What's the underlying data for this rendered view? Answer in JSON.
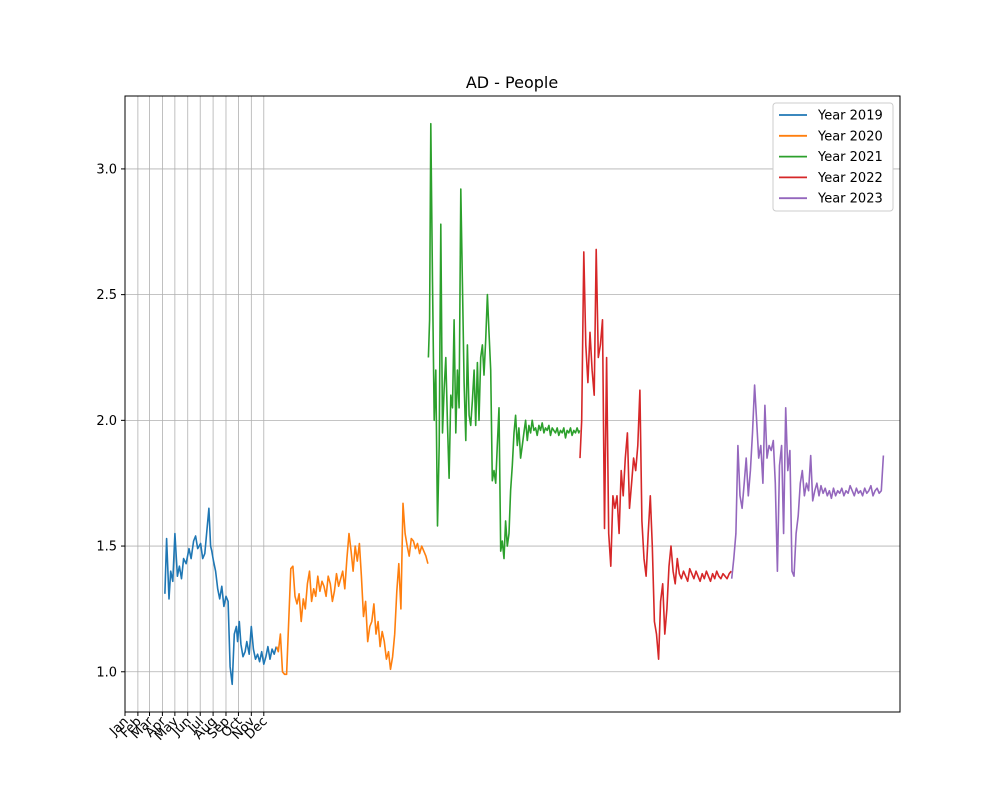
{
  "chart_data": {
    "type": "line",
    "title": "AD - People",
    "xlabel": "",
    "ylabel": "",
    "ylim": [
      0.84,
      3.29
    ],
    "grid": true,
    "legend_location": "top-right",
    "y_ticks": [
      1.0,
      1.5,
      2.0,
      2.5,
      3.0
    ],
    "x_ticks": [
      "Jan",
      "Feb",
      "Mar",
      "Apr",
      "May",
      "Jun",
      "Jul",
      "Aug",
      "Sep",
      "Oct",
      "Nov",
      "Dec"
    ],
    "x_tick_positions": [
      1,
      32,
      60,
      91,
      121,
      152,
      182,
      213,
      244,
      274,
      305,
      335
    ],
    "x_range": [
      1,
      1866
    ],
    "series": [
      {
        "name": "Year 2019",
        "color": "#1f77b4",
        "x": [
          97,
          101,
          107,
          111,
          116,
          121,
          127,
          132,
          137,
          142,
          148,
          155,
          160,
          166,
          171,
          176,
          183,
          188,
          193,
          199,
          203,
          207,
          210,
          214,
          219,
          224,
          229,
          234,
          239,
          244,
          249,
          254,
          259,
          264,
          269,
          272,
          276,
          280,
          285,
          290,
          294,
          300,
          305,
          310,
          315,
          320,
          325,
          330,
          335,
          340,
          345,
          350,
          355,
          360,
          365
        ],
        "values": [
          1.31,
          1.53,
          1.29,
          1.4,
          1.36,
          1.55,
          1.38,
          1.42,
          1.37,
          1.45,
          1.43,
          1.49,
          1.45,
          1.52,
          1.54,
          1.49,
          1.51,
          1.45,
          1.47,
          1.58,
          1.65,
          1.5,
          1.48,
          1.44,
          1.4,
          1.33,
          1.29,
          1.34,
          1.26,
          1.3,
          1.28,
          1.02,
          0.95,
          1.15,
          1.18,
          1.12,
          1.2,
          1.11,
          1.06,
          1.08,
          1.12,
          1.07,
          1.18,
          1.09,
          1.05,
          1.07,
          1.04,
          1.08,
          1.03,
          1.06,
          1.1,
          1.05,
          1.09,
          1.07,
          1.1
        ]
      },
      {
        "name": "Year 2020",
        "color": "#ff7f0e",
        "x": [
          366,
          370,
          375,
          380,
          385,
          390,
          395,
          400,
          405,
          410,
          415,
          420,
          425,
          430,
          435,
          440,
          445,
          450,
          455,
          460,
          465,
          470,
          475,
          480,
          485,
          490,
          495,
          500,
          505,
          510,
          515,
          520,
          525,
          530,
          535,
          540,
          545,
          550,
          555,
          560,
          565,
          570,
          575,
          580,
          585,
          590,
          595,
          600,
          605,
          610,
          615,
          620,
          625,
          630,
          635,
          640,
          645,
          650,
          655,
          660,
          665,
          670,
          675,
          680,
          685,
          690,
          695,
          700,
          705,
          710,
          715,
          720,
          725,
          730
        ],
        "values": [
          1.1,
          1.08,
          1.15,
          1.0,
          0.99,
          0.99,
          1.2,
          1.41,
          1.42,
          1.3,
          1.27,
          1.31,
          1.2,
          1.29,
          1.25,
          1.35,
          1.4,
          1.28,
          1.33,
          1.3,
          1.38,
          1.32,
          1.36,
          1.34,
          1.3,
          1.38,
          1.35,
          1.28,
          1.32,
          1.39,
          1.34,
          1.37,
          1.4,
          1.33,
          1.45,
          1.55,
          1.48,
          1.4,
          1.5,
          1.44,
          1.51,
          1.38,
          1.22,
          1.28,
          1.12,
          1.18,
          1.2,
          1.27,
          1.15,
          1.2,
          1.1,
          1.16,
          1.12,
          1.05,
          1.08,
          1.01,
          1.06,
          1.15,
          1.32,
          1.43,
          1.25,
          1.67,
          1.55,
          1.5,
          1.46,
          1.53,
          1.52,
          1.49,
          1.51,
          1.47,
          1.5,
          1.48,
          1.46,
          1.43
        ]
      },
      {
        "name": "Year 2021",
        "color": "#2ca02c",
        "x": [
          731,
          734,
          737,
          741,
          745,
          749,
          753,
          757,
          761,
          765,
          769,
          773,
          777,
          781,
          785,
          789,
          793,
          797,
          801,
          805,
          809,
          813,
          817,
          821,
          825,
          829,
          833,
          837,
          841,
          845,
          849,
          853,
          857,
          861,
          865,
          869,
          873,
          877,
          881,
          885,
          889,
          893,
          897,
          901,
          905,
          909,
          913,
          917,
          921,
          925,
          929,
          933,
          937,
          941,
          945,
          949,
          953,
          957,
          961,
          965,
          969,
          973,
          977,
          981,
          985,
          989,
          993,
          997,
          1001,
          1005,
          1009,
          1013,
          1017,
          1021,
          1025,
          1029,
          1033,
          1037,
          1041,
          1045,
          1049,
          1053,
          1057,
          1061,
          1065,
          1069,
          1073,
          1077,
          1081,
          1085,
          1089,
          1093,
          1095
        ],
        "values": [
          2.25,
          2.4,
          3.18,
          2.55,
          2.0,
          2.2,
          1.58,
          1.9,
          2.78,
          1.95,
          2.12,
          2.25,
          1.98,
          1.77,
          2.1,
          2.05,
          2.4,
          1.95,
          2.2,
          2.05,
          2.92,
          2.55,
          2.15,
          1.92,
          2.3,
          2.02,
          1.98,
          2.08,
          2.2,
          1.98,
          2.23,
          2.0,
          2.25,
          2.3,
          2.18,
          2.32,
          2.5,
          2.35,
          2.2,
          1.76,
          1.8,
          1.75,
          1.9,
          2.05,
          1.48,
          1.52,
          1.45,
          1.6,
          1.5,
          1.55,
          1.72,
          1.82,
          1.95,
          2.02,
          1.9,
          1.97,
          1.85,
          1.9,
          1.95,
          2.0,
          1.92,
          1.98,
          1.95,
          2.0,
          1.96,
          1.97,
          1.94,
          1.98,
          1.96,
          1.99,
          1.95,
          1.97,
          1.96,
          1.98,
          1.94,
          1.97,
          1.96,
          1.95,
          1.97,
          1.94,
          1.96,
          1.95,
          1.97,
          1.93,
          1.96,
          1.95,
          1.97,
          1.94,
          1.96,
          1.95,
          1.97,
          1.95,
          1.96
        ]
      },
      {
        "name": "Year 2022",
        "color": "#d62728",
        "x": [
          1096,
          1100,
          1105,
          1110,
          1115,
          1120,
          1125,
          1130,
          1135,
          1140,
          1145,
          1150,
          1155,
          1160,
          1165,
          1170,
          1175,
          1180,
          1185,
          1190,
          1195,
          1200,
          1205,
          1210,
          1215,
          1220,
          1225,
          1230,
          1235,
          1240,
          1245,
          1250,
          1255,
          1260,
          1265,
          1270,
          1275,
          1280,
          1285,
          1290,
          1295,
          1300,
          1305,
          1310,
          1315,
          1320,
          1325,
          1330,
          1335,
          1340,
          1345,
          1350,
          1355,
          1360,
          1365,
          1370,
          1375,
          1380,
          1385,
          1390,
          1395,
          1400,
          1405,
          1410,
          1415,
          1420,
          1425,
          1430,
          1435,
          1440,
          1445,
          1450,
          1455,
          1460
        ],
        "values": [
          1.85,
          2.0,
          2.67,
          2.3,
          2.15,
          2.35,
          2.2,
          2.1,
          2.68,
          2.25,
          2.3,
          2.4,
          1.57,
          2.25,
          1.55,
          1.42,
          1.7,
          1.65,
          1.7,
          1.55,
          1.8,
          1.7,
          1.85,
          1.95,
          1.65,
          1.75,
          1.85,
          1.8,
          1.9,
          2.12,
          1.6,
          1.45,
          1.38,
          1.55,
          1.7,
          1.5,
          1.2,
          1.15,
          1.05,
          1.28,
          1.35,
          1.15,
          1.25,
          1.42,
          1.5,
          1.4,
          1.35,
          1.45,
          1.39,
          1.37,
          1.4,
          1.38,
          1.36,
          1.41,
          1.39,
          1.37,
          1.4,
          1.38,
          1.36,
          1.39,
          1.37,
          1.4,
          1.38,
          1.36,
          1.39,
          1.37,
          1.4,
          1.38,
          1.37,
          1.39,
          1.38,
          1.37,
          1.39,
          1.4
        ]
      },
      {
        "name": "Year 2023",
        "color": "#9467bd",
        "x": [
          1461,
          1466,
          1471,
          1476,
          1481,
          1486,
          1491,
          1496,
          1501,
          1506,
          1511,
          1516,
          1521,
          1526,
          1531,
          1536,
          1541,
          1546,
          1551,
          1556,
          1561,
          1566,
          1571,
          1576,
          1581,
          1586,
          1591,
          1596,
          1601,
          1606,
          1611,
          1616,
          1621,
          1626,
          1631,
          1636,
          1641,
          1646,
          1651,
          1656,
          1661,
          1666,
          1671,
          1676,
          1681,
          1686,
          1691,
          1696,
          1701,
          1706,
          1711,
          1716,
          1721,
          1726,
          1731,
          1736,
          1741,
          1746,
          1751,
          1756,
          1761,
          1766,
          1771,
          1776,
          1781,
          1786,
          1791,
          1796,
          1801,
          1806,
          1811,
          1816,
          1821,
          1826
        ],
        "values": [
          1.37,
          1.45,
          1.55,
          1.9,
          1.7,
          1.65,
          1.75,
          1.85,
          1.7,
          1.8,
          1.95,
          2.14,
          2.0,
          1.85,
          1.9,
          1.75,
          2.06,
          1.85,
          1.9,
          1.88,
          1.92,
          1.75,
          1.4,
          1.82,
          1.9,
          1.55,
          2.05,
          1.8,
          1.88,
          1.4,
          1.38,
          1.55,
          1.62,
          1.75,
          1.8,
          1.7,
          1.75,
          1.72,
          1.86,
          1.68,
          1.72,
          1.75,
          1.7,
          1.74,
          1.71,
          1.73,
          1.7,
          1.72,
          1.69,
          1.73,
          1.7,
          1.72,
          1.71,
          1.73,
          1.7,
          1.72,
          1.71,
          1.74,
          1.72,
          1.7,
          1.73,
          1.71,
          1.72,
          1.7,
          1.73,
          1.71,
          1.72,
          1.74,
          1.7,
          1.72,
          1.73,
          1.71,
          1.72,
          1.86
        ]
      }
    ]
  }
}
